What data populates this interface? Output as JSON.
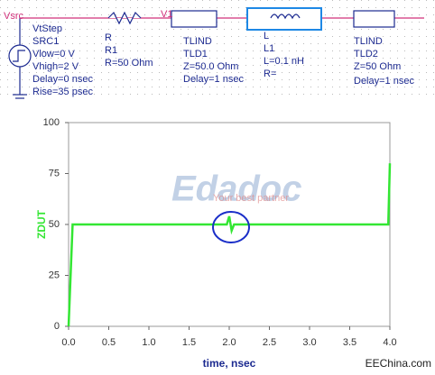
{
  "schematic": {
    "node_labels": [
      "Vsrc",
      "V1"
    ],
    "source": {
      "type": "VtStep",
      "name": "SRC1",
      "params": [
        "Vlow=0 V",
        "Vhigh=2 V",
        "Delay=0 nsec",
        "Rise=35 psec"
      ]
    },
    "resistor": {
      "type": "R",
      "name": "R1",
      "params": [
        "R=50 Ohm"
      ]
    },
    "tline1": {
      "type": "TLIND",
      "name": "TLD1",
      "params": [
        "Z=50.0 Ohm",
        "Delay=1 nsec"
      ]
    },
    "inductor": {
      "type": "L",
      "name": "L1",
      "params": [
        "L=0.1 nH",
        "R="
      ]
    },
    "tline2": {
      "type": "TLIND",
      "name": "TLD2",
      "params": [
        "Z=50 Ohm",
        "Delay=1 nsec"
      ]
    }
  },
  "watermark": {
    "logo": "Edadoc",
    "tagline": "Your best partner",
    "site": "EEChina.com"
  },
  "chart_data": {
    "type": "line",
    "xlabel": "time, nsec",
    "ylabel": "ZDUT",
    "x": [
      0,
      0.05,
      1.97,
      2.0,
      2.03,
      2.06,
      3.98,
      4.0
    ],
    "series": [
      {
        "name": "ZDUT",
        "color": "#33e633",
        "values": [
          0,
          50,
          50,
          54,
          47,
          50,
          50,
          80
        ]
      }
    ],
    "xlim": [
      0,
      4
    ],
    "ylim": [
      0,
      100
    ],
    "xticks": [
      {
        "value": 0,
        "label": "0.0"
      },
      {
        "value": 0.5,
        "label": "0.5"
      },
      {
        "value": 1,
        "label": "1.0"
      },
      {
        "value": 1.5,
        "label": "1.5"
      },
      {
        "value": 2,
        "label": "2.0"
      },
      {
        "value": 2.5,
        "label": "2.5"
      },
      {
        "value": 3,
        "label": "3.0"
      },
      {
        "value": 3.5,
        "label": "3.5"
      },
      {
        "value": 4,
        "label": "4.0"
      }
    ],
    "yticks": [
      0,
      25,
      50,
      75,
      100
    ]
  }
}
